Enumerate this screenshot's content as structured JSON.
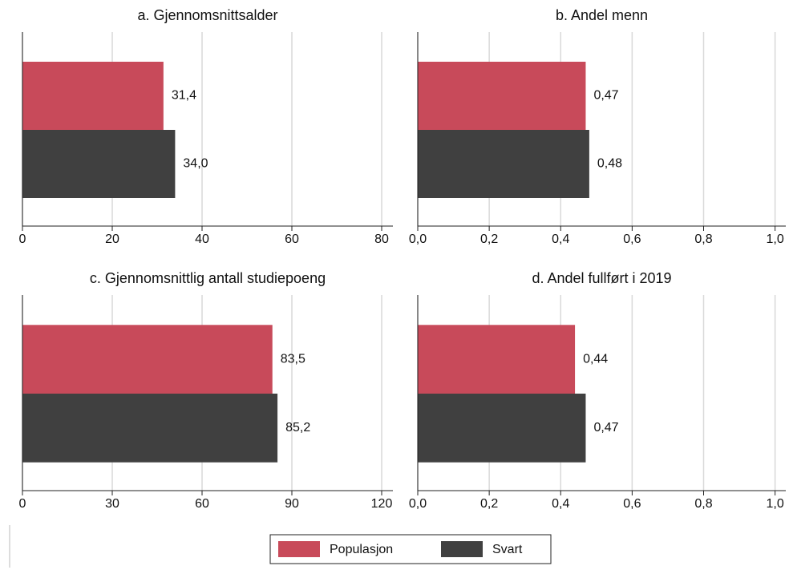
{
  "chart_data": [
    {
      "type": "barh",
      "title": "a. Gjennomsnittsalder",
      "values": [
        31.4,
        34.0
      ],
      "value_labels": [
        "31,4",
        "34,0"
      ],
      "xlim": [
        0,
        82.5
      ],
      "xticks": [
        0,
        20,
        40,
        60,
        80
      ],
      "grid": true
    },
    {
      "type": "barh",
      "title": "b. Andel menn",
      "values": [
        0.47,
        0.48
      ],
      "value_labels": [
        "0,47",
        "0,48"
      ],
      "xlim": [
        0,
        1.03
      ],
      "xticks": [
        {
          "value": 0,
          "label": "0,0"
        },
        {
          "value": 0.2,
          "label": "0,2"
        },
        {
          "value": 0.4,
          "label": "0,4"
        },
        {
          "value": 0.6,
          "label": "0,6"
        },
        {
          "value": 0.8,
          "label": "0,8"
        },
        {
          "value": 1.0,
          "label": "1,0"
        }
      ],
      "grid": true
    },
    {
      "type": "barh",
      "title": "c. Gjennomsnittlig antall studiepoeng",
      "values": [
        83.5,
        85.2
      ],
      "value_labels": [
        "83,5",
        "85,2"
      ],
      "xlim": [
        0,
        123.75
      ],
      "xticks": [
        0,
        30,
        60,
        90,
        120
      ],
      "grid": true
    },
    {
      "type": "barh",
      "title": "d. Andel fullført i 2019",
      "values": [
        0.44,
        0.47
      ],
      "value_labels": [
        "0,44",
        "0,47"
      ],
      "xlim": [
        0,
        1.03
      ],
      "xticks": [
        {
          "value": 0,
          "label": "0,0"
        },
        {
          "value": 0.2,
          "label": "0,2"
        },
        {
          "value": 0.4,
          "label": "0,4"
        },
        {
          "value": 0.6,
          "label": "0,6"
        },
        {
          "value": 0.8,
          "label": "0,8"
        },
        {
          "value": 1.0,
          "label": "1,0"
        }
      ],
      "grid": true
    }
  ],
  "legend": {
    "series": [
      {
        "name": "Populasjon",
        "color": "#c84a5a"
      },
      {
        "name": "Svart",
        "color": "#404040"
      }
    ]
  }
}
